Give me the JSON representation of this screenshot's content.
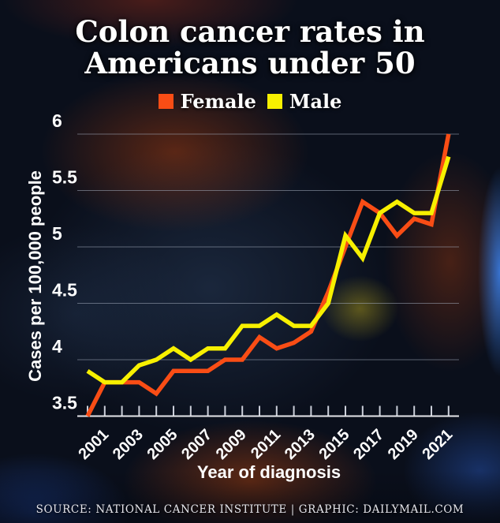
{
  "title": {
    "line1": "Colon cancer rates in",
    "line2": "Americans under 50"
  },
  "footer": {
    "credit": "SOURCE: NATIONAL CANCER INSTITUTE | GRAPHIC: DAILYMAIL.COM"
  },
  "chart_data": {
    "type": "line",
    "title": "Colon cancer rates in Americans under 50",
    "xlabel": "Year of diagnosis",
    "ylabel": "Cases per 100,000 people",
    "x": [
      2000,
      2001,
      2002,
      2003,
      2004,
      2005,
      2006,
      2007,
      2008,
      2009,
      2010,
      2011,
      2012,
      2013,
      2014,
      2015,
      2016,
      2017,
      2018,
      2019,
      2020,
      2021
    ],
    "series": [
      {
        "name": "Female",
        "color": "#f94d15",
        "values": [
          3.5,
          3.8,
          3.8,
          3.8,
          3.7,
          3.9,
          3.9,
          3.9,
          4.0,
          4.0,
          4.2,
          4.1,
          4.15,
          4.25,
          4.6,
          5.0,
          5.4,
          5.3,
          5.1,
          5.25,
          5.2,
          6.0
        ]
      },
      {
        "name": "Male",
        "color": "#f7f000",
        "values": [
          3.9,
          3.8,
          3.8,
          3.95,
          4.0,
          4.1,
          4.0,
          4.1,
          4.1,
          4.3,
          4.3,
          4.4,
          4.3,
          4.3,
          4.5,
          5.1,
          4.9,
          5.3,
          5.4,
          5.3,
          5.3,
          5.8
        ]
      }
    ],
    "ylim": [
      3.5,
      6
    ],
    "yticks": [
      3.5,
      4,
      4.5,
      5,
      5.5,
      6
    ],
    "xtick_labels": [
      2001,
      2003,
      2005,
      2007,
      2009,
      2011,
      2013,
      2015,
      2017,
      2019,
      2021
    ],
    "grid": true,
    "legend_position": "top"
  }
}
